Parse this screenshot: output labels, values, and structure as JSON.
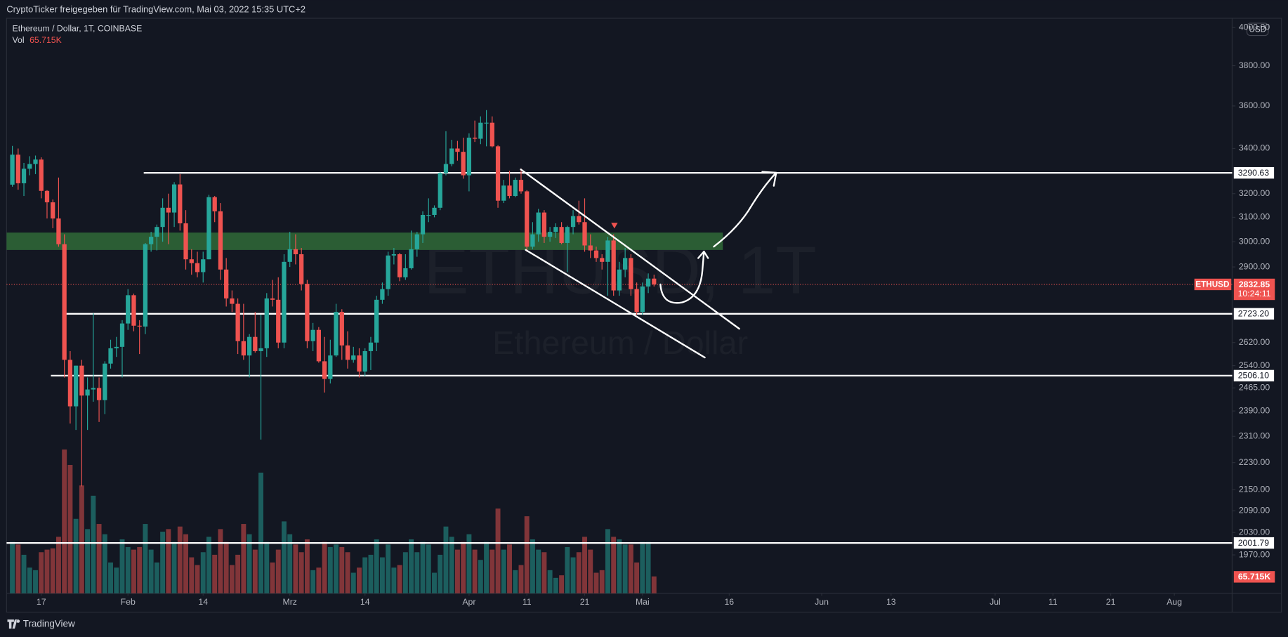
{
  "header": "CryptoTicker freigegeben für TradingView.com, Mai 03, 2022 15:35 UTC+2",
  "footer": "TradingView",
  "chart_data": {
    "type": "candlestick",
    "title": "Ethereum / Dollar, 1T, COINBASE",
    "watermark": "ETHUSD, 1T",
    "watermark_subtitle": "Ethereum / Dollar",
    "symbol": "ETHUSD",
    "currency": "USD",
    "countdown": "10:24:11",
    "up_color": "#26a69a",
    "down_color": "#ef5350",
    "x": [
      "2022-01-12",
      "2022-01-13",
      "2022-01-14",
      "2022-01-15",
      "2022-01-16",
      "2022-01-17",
      "2022-01-18",
      "2022-01-19",
      "2022-01-20",
      "2022-01-21",
      "2022-01-22",
      "2022-01-23",
      "2022-01-24",
      "2022-01-25",
      "2022-01-26",
      "2022-01-27",
      "2022-01-28",
      "2022-01-29",
      "2022-01-30",
      "2022-01-31",
      "2022-02-01",
      "2022-02-02",
      "2022-02-03",
      "2022-02-04",
      "2022-02-05",
      "2022-02-06",
      "2022-02-07",
      "2022-02-08",
      "2022-02-09",
      "2022-02-10",
      "2022-02-11",
      "2022-02-12",
      "2022-02-13",
      "2022-02-14",
      "2022-02-15",
      "2022-02-16",
      "2022-02-17",
      "2022-02-18",
      "2022-02-19",
      "2022-02-20",
      "2022-02-21",
      "2022-02-22",
      "2022-02-23",
      "2022-02-24",
      "2022-02-25",
      "2022-02-26",
      "2022-02-27",
      "2022-02-28",
      "2022-03-01",
      "2022-03-02",
      "2022-03-03",
      "2022-03-04",
      "2022-03-05",
      "2022-03-06",
      "2022-03-07",
      "2022-03-08",
      "2022-03-09",
      "2022-03-10",
      "2022-03-11",
      "2022-03-12",
      "2022-03-13",
      "2022-03-14",
      "2022-03-15",
      "2022-03-16",
      "2022-03-17",
      "2022-03-18",
      "2022-03-19",
      "2022-03-20",
      "2022-03-21",
      "2022-03-22",
      "2022-03-23",
      "2022-03-24",
      "2022-03-25",
      "2022-03-26",
      "2022-03-27",
      "2022-03-28",
      "2022-03-29",
      "2022-03-30",
      "2022-03-31",
      "2022-04-01",
      "2022-04-02",
      "2022-04-03",
      "2022-04-04",
      "2022-04-05",
      "2022-04-06",
      "2022-04-07",
      "2022-04-08",
      "2022-04-09",
      "2022-04-10",
      "2022-04-11",
      "2022-04-12",
      "2022-04-13",
      "2022-04-14",
      "2022-04-15",
      "2022-04-16",
      "2022-04-17",
      "2022-04-18",
      "2022-04-19",
      "2022-04-20",
      "2022-04-21",
      "2022-04-22",
      "2022-04-23",
      "2022-04-24",
      "2022-04-25",
      "2022-04-26",
      "2022-04-27",
      "2022-04-28",
      "2022-04-29",
      "2022-04-30",
      "2022-05-01",
      "2022-05-02",
      "2022-05-03"
    ],
    "open": [
      3239,
      3372,
      3245,
      3309,
      3330,
      3350,
      3212,
      3163,
      3095,
      2990,
      2560,
      2405,
      2540,
      2440,
      2460,
      2465,
      2425,
      2547,
      2600,
      2605,
      2688,
      2792,
      2680,
      2677,
      2990,
      3020,
      3060,
      3140,
      3120,
      3240,
      3075,
      2930,
      2915,
      2880,
      2930,
      3185,
      3125,
      2890,
      2780,
      2760,
      2625,
      2575,
      2640,
      2590,
      2600,
      2780,
      2775,
      2620,
      2920,
      2970,
      2950,
      2835,
      2625,
      2665,
      2555,
      2495,
      2575,
      2730,
      2610,
      2560,
      2575,
      2520,
      2590,
      2620,
      2775,
      2815,
      2945,
      2950,
      2860,
      2895,
      2970,
      3030,
      3110,
      3110,
      3140,
      3290,
      3330,
      3400,
      3385,
      3280,
      3450,
      3445,
      3520,
      3520,
      3410,
      3170,
      3235,
      3190,
      3260,
      3210,
      2980,
      3030,
      3120,
      3020,
      3040,
      3060,
      2995,
      3060,
      3105,
      3080,
      2985,
      2965,
      2935,
      2920,
      3005,
      2810,
      2890,
      2935,
      2815,
      2730,
      2825,
      2855
    ],
    "high": [
      3412,
      3400,
      3335,
      3365,
      3368,
      3360,
      3215,
      3175,
      3270,
      3030,
      2590,
      2540,
      2560,
      2500,
      2725,
      2500,
      2555,
      2630,
      2640,
      2700,
      2815,
      2798,
      2700,
      2995,
      3040,
      3070,
      3180,
      3200,
      3250,
      3285,
      3130,
      2970,
      2960,
      2960,
      3195,
      3190,
      3160,
      2935,
      2810,
      2780,
      2760,
      2650,
      2730,
      2720,
      2800,
      2850,
      2860,
      2950,
      3040,
      3030,
      2975,
      2850,
      2690,
      2675,
      2640,
      2630,
      2760,
      2740,
      2660,
      2605,
      2600,
      2600,
      2640,
      2790,
      2840,
      2960,
      2975,
      2955,
      2950,
      3045,
      3040,
      3125,
      3180,
      3150,
      3295,
      3480,
      3440,
      3435,
      3450,
      3470,
      3530,
      3550,
      3580,
      3550,
      3415,
      3260,
      3300,
      3270,
      3310,
      3215,
      3080,
      3135,
      3130,
      3060,
      3075,
      3080,
      3065,
      3130,
      3170,
      3180,
      3030,
      2980,
      2950,
      3020,
      3030,
      2920,
      2975,
      2950,
      2840,
      2840,
      2875,
      2870
    ],
    "low": [
      3230,
      3217,
      3190,
      3280,
      3285,
      3180,
      3095,
      3055,
      2980,
      2500,
      2350,
      2330,
      2160,
      2330,
      2420,
      2355,
      2380,
      2530,
      2570,
      2500,
      2665,
      2660,
      2580,
      2650,
      2960,
      2965,
      3000,
      2990,
      3060,
      3045,
      2890,
      2870,
      2860,
      2840,
      2930,
      3080,
      2850,
      2750,
      2730,
      2580,
      2560,
      2500,
      2585,
      2300,
      2570,
      2750,
      2600,
      2600,
      2900,
      2910,
      2810,
      2600,
      2590,
      2550,
      2450,
      2480,
      2570,
      2560,
      2530,
      2550,
      2500,
      2505,
      2525,
      2590,
      2760,
      2790,
      2910,
      2845,
      2850,
      2890,
      2940,
      2995,
      3080,
      3100,
      3130,
      3280,
      3320,
      3345,
      3265,
      3210,
      3430,
      3420,
      3410,
      3405,
      3140,
      3160,
      3180,
      3185,
      3200,
      2960,
      2970,
      3000,
      2995,
      3000,
      3015,
      2990,
      2880,
      3030,
      3070,
      2960,
      2935,
      2920,
      2890,
      2790,
      2790,
      2790,
      2860,
      2790,
      2720,
      2720,
      2800,
      2825
    ],
    "close": [
      3372,
      3245,
      3309,
      3330,
      3350,
      3212,
      3163,
      3095,
      2990,
      2560,
      2405,
      2540,
      2440,
      2460,
      2465,
      2425,
      2547,
      2600,
      2605,
      2688,
      2792,
      2680,
      2677,
      2990,
      3020,
      3060,
      3140,
      3120,
      3240,
      3075,
      2930,
      2915,
      2880,
      2930,
      3185,
      3125,
      2890,
      2780,
      2760,
      2625,
      2575,
      2640,
      2590,
      2600,
      2780,
      2775,
      2620,
      2920,
      2970,
      2950,
      2835,
      2625,
      2665,
      2555,
      2495,
      2575,
      2730,
      2610,
      2560,
      2575,
      2520,
      2590,
      2620,
      2775,
      2815,
      2945,
      2950,
      2860,
      2895,
      2970,
      3030,
      3110,
      3110,
      3140,
      3290,
      3330,
      3400,
      3385,
      3280,
      3450,
      3445,
      3520,
      3520,
      3410,
      3170,
      3235,
      3190,
      3260,
      3210,
      2980,
      3030,
      3120,
      3020,
      3040,
      3060,
      2995,
      3060,
      3105,
      3080,
      2985,
      2965,
      2935,
      2920,
      3005,
      2810,
      2890,
      2935,
      2815,
      2730,
      2825,
      2855,
      2832.85
    ],
    "volume": {
      "name": "Vol",
      "values": [
        200000,
        190000,
        150000,
        100000,
        90000,
        160000,
        170000,
        175000,
        220000,
        560000,
        500000,
        290000,
        420000,
        250000,
        380000,
        270000,
        230000,
        120000,
        100000,
        210000,
        180000,
        170000,
        180000,
        270000,
        170000,
        120000,
        240000,
        250000,
        200000,
        260000,
        230000,
        140000,
        110000,
        160000,
        220000,
        150000,
        250000,
        200000,
        110000,
        150000,
        270000,
        230000,
        170000,
        470000,
        200000,
        120000,
        170000,
        280000,
        230000,
        190000,
        160000,
        210000,
        90000,
        100000,
        200000,
        180000,
        190000,
        180000,
        160000,
        80000,
        100000,
        140000,
        150000,
        210000,
        140000,
        190000,
        100000,
        110000,
        160000,
        210000,
        160000,
        200000,
        190000,
        80000,
        150000,
        260000,
        220000,
        170000,
        200000,
        230000,
        170000,
        130000,
        200000,
        170000,
        330000,
        170000,
        190000,
        90000,
        110000,
        300000,
        210000,
        170000,
        160000,
        90000,
        60000,
        70000,
        180000,
        140000,
        160000,
        220000,
        170000,
        80000,
        90000,
        250000,
        220000,
        210000,
        190000,
        190000,
        120000,
        200000,
        200000,
        65715
      ],
      "value_labels": {
        "111": "65.715K"
      }
    },
    "log_scale": true,
    "grid": false,
    "ylim": [
      1871,
      4050
    ],
    "yticks": [
      {
        "value": 4000,
        "label": "4000.00"
      },
      {
        "value": 3800,
        "label": "3800.00"
      },
      {
        "value": 3600,
        "label": "3600.00"
      },
      {
        "value": 3400,
        "label": "3400.00"
      },
      {
        "value": 3200,
        "label": "3200.00"
      },
      {
        "value": 3100,
        "label": "3100.00"
      },
      {
        "value": 3000,
        "label": "3000.00"
      },
      {
        "value": 2900,
        "label": "2900.00"
      },
      {
        "value": 2620,
        "label": "2620.00"
      },
      {
        "value": 2540,
        "label": "2540.00"
      },
      {
        "value": 2465,
        "label": "2465.00"
      },
      {
        "value": 2390,
        "label": "2390.00"
      },
      {
        "value": 2310,
        "label": "2310.00"
      },
      {
        "value": 2230,
        "label": "2230.00"
      },
      {
        "value": 2150,
        "label": "2150.00"
      },
      {
        "value": 2090,
        "label": "2090.00"
      },
      {
        "value": 2030,
        "label": "2030.00"
      },
      {
        "value": 1970,
        "label": "1970.00"
      }
    ],
    "xlim": [
      "2022-01-11",
      "2022-08-11"
    ],
    "xticks": [
      {
        "value": "2022-01-17",
        "label": "17"
      },
      {
        "value": "2022-02-01",
        "label": "Feb"
      },
      {
        "value": "2022-02-14",
        "label": "14"
      },
      {
        "value": "2022-03-01",
        "label": "Mrz"
      },
      {
        "value": "2022-03-14",
        "label": "14"
      },
      {
        "value": "2022-04-01",
        "label": "Apr"
      },
      {
        "value": "2022-04-11",
        "label": "11"
      },
      {
        "value": "2022-04-21",
        "label": "21"
      },
      {
        "value": "2022-05-01",
        "label": "Mai"
      },
      {
        "value": "2022-05-16",
        "label": "16"
      },
      {
        "value": "2022-06-01",
        "label": "Jun"
      },
      {
        "value": "2022-06-13",
        "label": "13"
      },
      {
        "value": "2022-07-01",
        "label": "Jul"
      },
      {
        "value": "2022-07-11",
        "label": "11"
      },
      {
        "value": "2022-07-21",
        "label": "21"
      },
      {
        "value": "2022-08-01",
        "label": "Aug"
      }
    ],
    "levels": [
      3290.63,
      {
        "value": 2723.2,
        "label": "2723.20"
      },
      {
        "value": 2506.1,
        "label": "2506.10"
      },
      2001.79
    ],
    "zone": [
      2967,
      3037
    ],
    "zone_color": "#2b5d34"
  }
}
